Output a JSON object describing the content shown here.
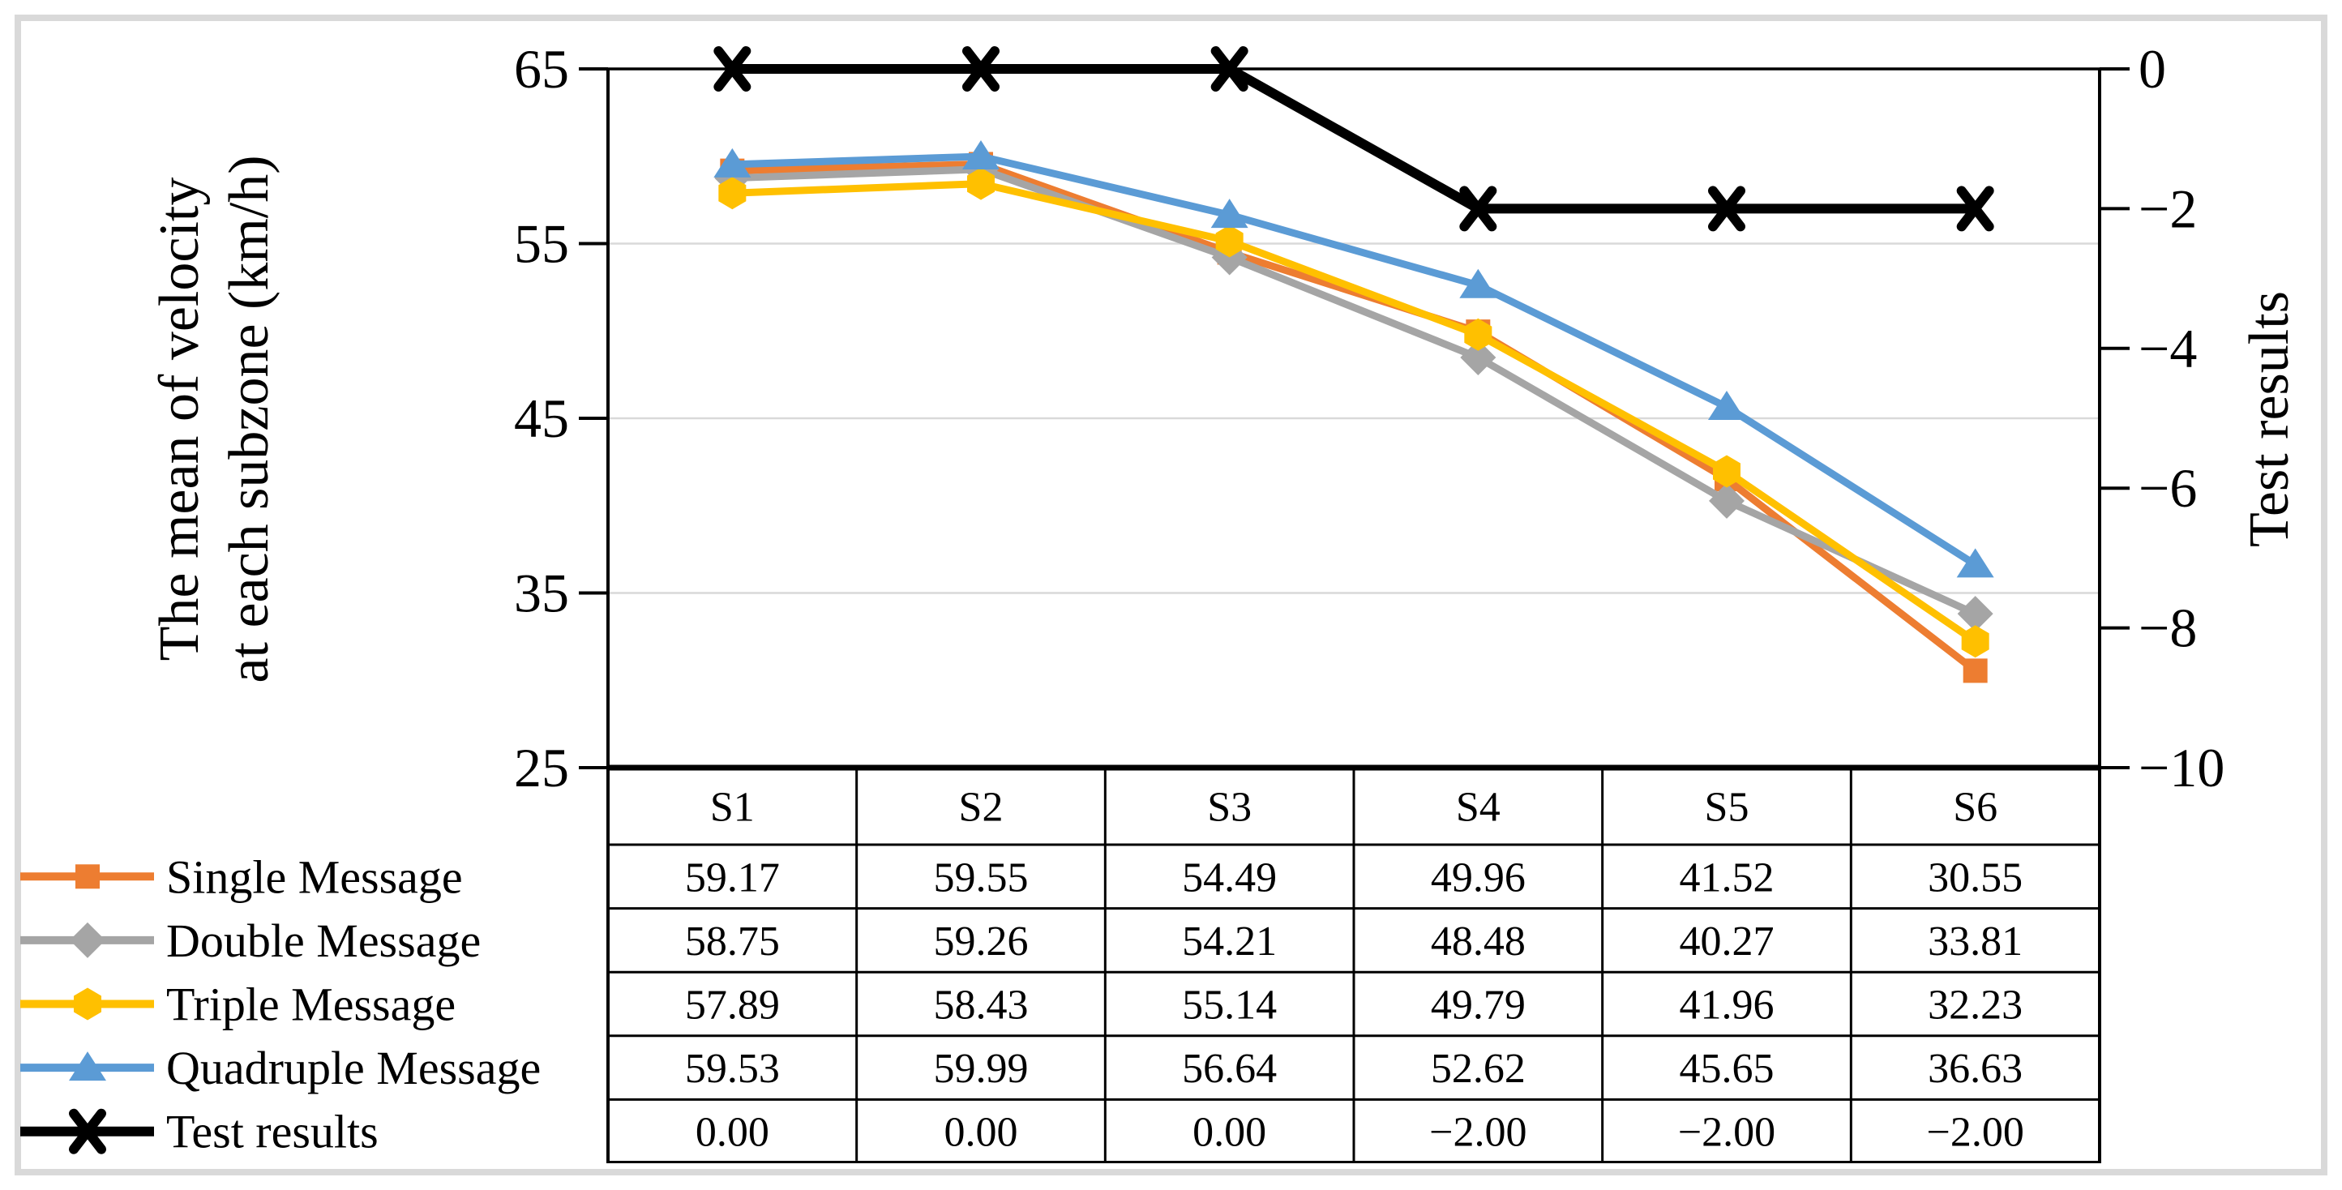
{
  "titles": {
    "left_axis_line1": "The mean of velocity",
    "left_axis_line2": "at each subzone (km/h)",
    "right_axis": "Test results"
  },
  "chart_data": {
    "type": "line",
    "categories": [
      "S1",
      "S2",
      "S3",
      "S4",
      "S5",
      "S6"
    ],
    "series": [
      {
        "name": "Single Message",
        "axis": "primary",
        "color": "#ED7D31",
        "marker": "square",
        "values": [
          59.17,
          59.55,
          54.49,
          49.96,
          41.52,
          30.55
        ],
        "labels": [
          "59.17",
          "59.55",
          "54.49",
          "49.96",
          "41.52",
          "30.55"
        ]
      },
      {
        "name": "Double Message",
        "axis": "primary",
        "color": "#A5A5A5",
        "marker": "diamond",
        "values": [
          58.75,
          59.26,
          54.21,
          48.48,
          40.27,
          33.81
        ],
        "labels": [
          "58.75",
          "59.26",
          "54.21",
          "48.48",
          "40.27",
          "33.81"
        ]
      },
      {
        "name": "Triple Message",
        "axis": "primary",
        "color": "#FFC000",
        "marker": "hexagon",
        "values": [
          57.89,
          58.43,
          55.14,
          49.79,
          41.96,
          32.23
        ],
        "labels": [
          "57.89",
          "58.43",
          "55.14",
          "49.79",
          "41.96",
          "32.23"
        ]
      },
      {
        "name": "Quadruple Message",
        "axis": "primary",
        "color": "#5B9BD5",
        "marker": "triangle",
        "values": [
          59.53,
          59.99,
          56.64,
          52.62,
          45.65,
          36.63
        ],
        "labels": [
          "59.53",
          "59.99",
          "56.64",
          "52.62",
          "45.65",
          "36.63"
        ]
      },
      {
        "name": "Test results",
        "axis": "secondary",
        "color": "#000000",
        "marker": "x",
        "values": [
          0,
          0,
          0,
          -2,
          -2,
          -2
        ],
        "labels": [
          "0.00",
          "0.00",
          "0.00",
          "−2.00",
          "−2.00",
          "−2.00"
        ]
      }
    ],
    "primary_axis": {
      "title": "The mean of velocity at each subzone (km/h)",
      "min": 25,
      "max": 65,
      "tick_values": [
        65,
        55,
        45,
        35,
        25
      ],
      "tick_labels": [
        "65",
        "55",
        "45",
        "35",
        "25"
      ]
    },
    "secondary_axis": {
      "title": "Test results",
      "min": -10,
      "max": 0,
      "tick_values": [
        0,
        -2,
        -4,
        -6,
        -8,
        -10
      ],
      "tick_labels": [
        "0",
        "−2",
        "−4",
        "−6",
        "−8",
        "−10"
      ]
    },
    "grid": true,
    "legend_position": "bottom-left",
    "data_table": true
  },
  "style": {
    "background": "#FFFFFF",
    "frame_border_color": "#D9D9D9",
    "gridline_color": "#D9D9D9",
    "axis_color": "#000000",
    "text_color": "#000000"
  }
}
